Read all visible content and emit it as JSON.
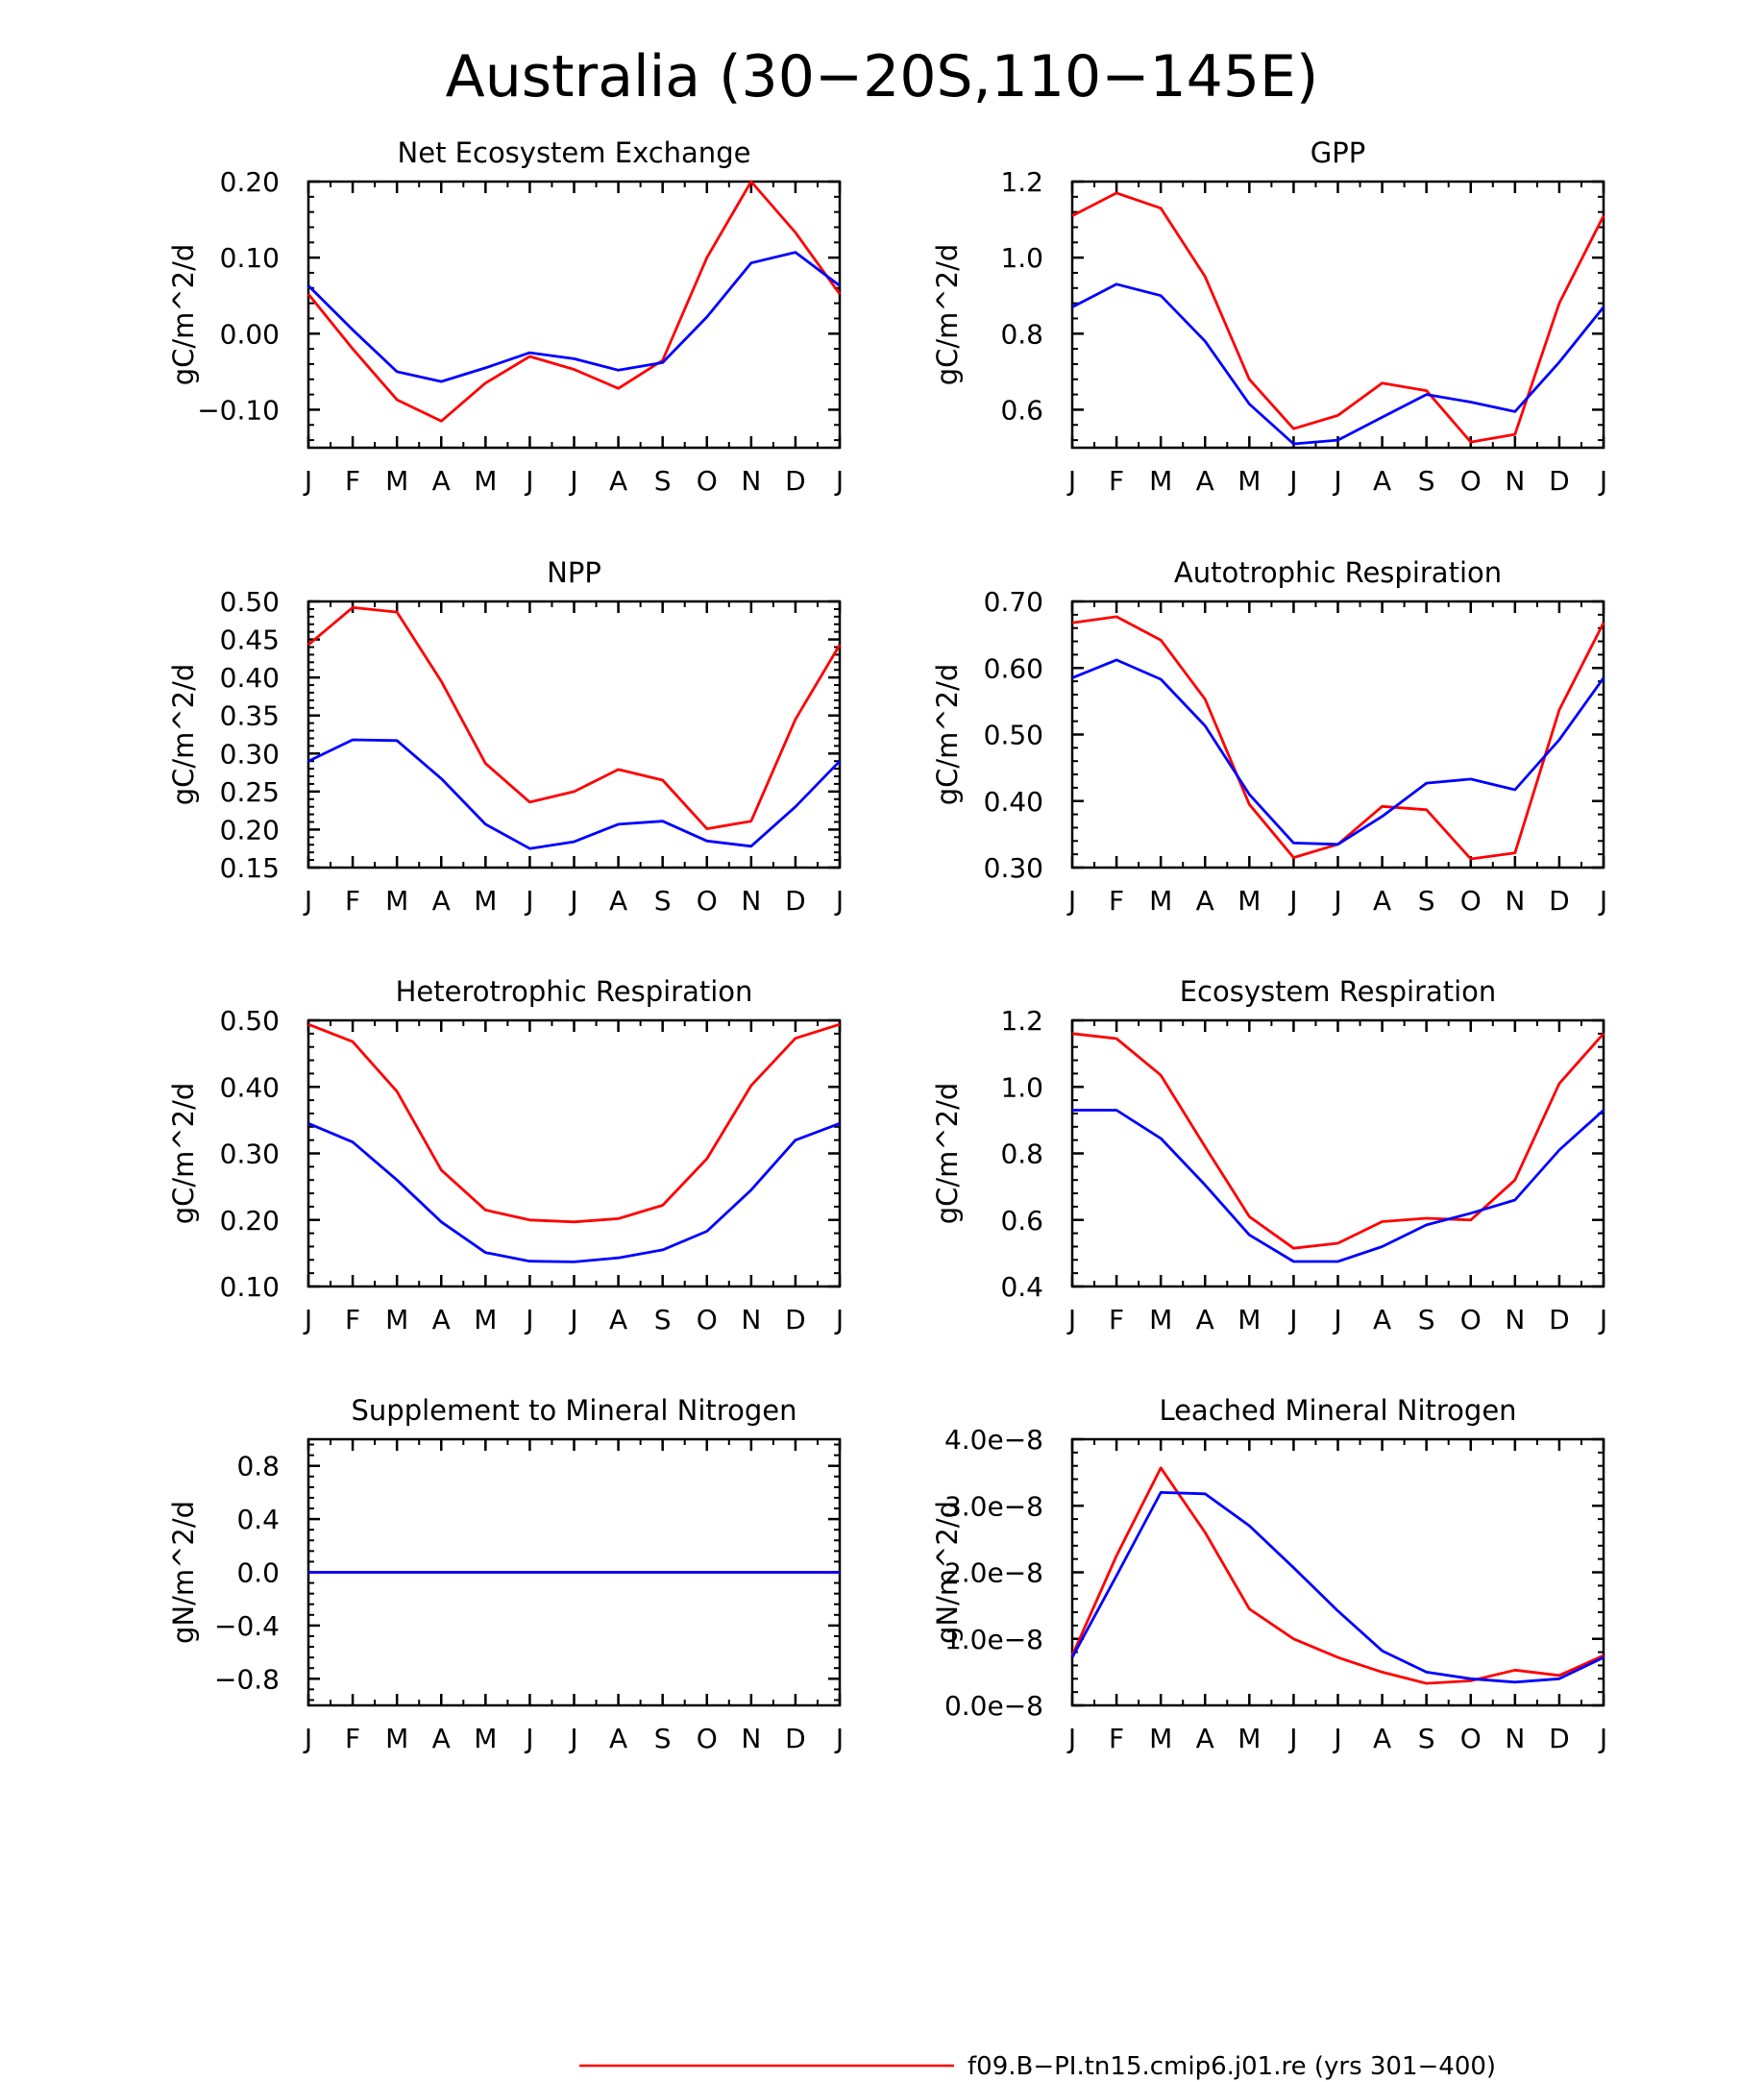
{
  "figure": {
    "title": "Australia (30−20S,110−145E)",
    "colors": {
      "series_1": "#ff0000",
      "series_2": "#0000ff",
      "axes": "#000000",
      "background": "#ffffff"
    }
  },
  "legend": {
    "entries": [
      {
        "label": "f09.B−PI.tn15.cmip6.j01.re (yrs 301−400)",
        "color": "#ff0000"
      }
    ]
  },
  "chart_data": [
    {
      "type": "line",
      "title": "Net Ecosystem Exchange",
      "ylabel": "gC/m^2/d",
      "xlabel": "",
      "categories": [
        "J",
        "F",
        "M",
        "A",
        "M",
        "J",
        "J",
        "A",
        "S",
        "O",
        "N",
        "D",
        "J"
      ],
      "ylim": [
        -0.15,
        0.2
      ],
      "yticks": [
        -0.1,
        0.0,
        0.1,
        0.2
      ],
      "ytick_labels": [
        "−0.10",
        "0.00",
        "0.10",
        "0.20"
      ],
      "series": [
        {
          "color": "#ff0000",
          "values": [
            0.052,
            -0.02,
            -0.087,
            -0.115,
            -0.065,
            -0.03,
            -0.047,
            -0.072,
            -0.035,
            0.1,
            0.2,
            0.133,
            0.052
          ]
        },
        {
          "color": "#0000ff",
          "values": [
            0.063,
            0.005,
            -0.05,
            -0.063,
            -0.045,
            -0.025,
            -0.033,
            -0.048,
            -0.038,
            0.022,
            0.093,
            0.107,
            0.063
          ]
        }
      ]
    },
    {
      "type": "line",
      "title": "GPP",
      "ylabel": "gC/m^2/d",
      "xlabel": "",
      "categories": [
        "J",
        "F",
        "M",
        "A",
        "M",
        "J",
        "J",
        "A",
        "S",
        "O",
        "N",
        "D",
        "J"
      ],
      "ylim": [
        0.5,
        1.2
      ],
      "yticks": [
        0.6,
        0.8,
        1.0,
        1.2
      ],
      "ytick_labels": [
        "0.6",
        "0.8",
        "1.0",
        "1.2"
      ],
      "series": [
        {
          "color": "#ff0000",
          "values": [
            1.11,
            1.17,
            1.13,
            0.95,
            0.68,
            0.55,
            0.585,
            0.67,
            0.65,
            0.515,
            0.535,
            0.88,
            1.11
          ]
        },
        {
          "color": "#0000ff",
          "values": [
            0.87,
            0.93,
            0.9,
            0.78,
            0.615,
            0.51,
            0.52,
            0.58,
            0.64,
            0.62,
            0.595,
            0.725,
            0.87
          ]
        }
      ]
    },
    {
      "type": "line",
      "title": "NPP",
      "ylabel": "gC/m^2/d",
      "xlabel": "",
      "categories": [
        "J",
        "F",
        "M",
        "A",
        "M",
        "J",
        "J",
        "A",
        "S",
        "O",
        "N",
        "D",
        "J"
      ],
      "ylim": [
        0.15,
        0.5
      ],
      "yticks": [
        0.15,
        0.2,
        0.25,
        0.3,
        0.35,
        0.4,
        0.45,
        0.5
      ],
      "ytick_labels": [
        "0.15",
        "0.20",
        "0.25",
        "0.30",
        "0.35",
        "0.40",
        "0.45",
        "0.50"
      ],
      "series": [
        {
          "color": "#ff0000",
          "values": [
            0.443,
            0.492,
            0.486,
            0.395,
            0.287,
            0.236,
            0.25,
            0.279,
            0.265,
            0.201,
            0.211,
            0.345,
            0.443
          ]
        },
        {
          "color": "#0000ff",
          "values": [
            0.29,
            0.318,
            0.317,
            0.267,
            0.207,
            0.175,
            0.184,
            0.207,
            0.211,
            0.185,
            0.178,
            0.23,
            0.29
          ]
        }
      ]
    },
    {
      "type": "line",
      "title": "Autotrophic Respiration",
      "ylabel": "gC/m^2/d",
      "xlabel": "",
      "categories": [
        "J",
        "F",
        "M",
        "A",
        "M",
        "J",
        "J",
        "A",
        "S",
        "O",
        "N",
        "D",
        "J"
      ],
      "ylim": [
        0.3,
        0.7
      ],
      "yticks": [
        0.3,
        0.4,
        0.5,
        0.6,
        0.7
      ],
      "ytick_labels": [
        "0.30",
        "0.40",
        "0.50",
        "0.60",
        "0.70"
      ],
      "series": [
        {
          "color": "#ff0000",
          "values": [
            0.668,
            0.677,
            0.642,
            0.553,
            0.395,
            0.315,
            0.335,
            0.392,
            0.387,
            0.313,
            0.322,
            0.537,
            0.668
          ]
        },
        {
          "color": "#0000ff",
          "values": [
            0.585,
            0.612,
            0.583,
            0.513,
            0.41,
            0.337,
            0.335,
            0.377,
            0.427,
            0.433,
            0.417,
            0.492,
            0.585
          ]
        }
      ]
    },
    {
      "type": "line",
      "title": "Heterotrophic Respiration",
      "ylabel": "gC/m^2/d",
      "xlabel": "",
      "categories": [
        "J",
        "F",
        "M",
        "A",
        "M",
        "J",
        "J",
        "A",
        "S",
        "O",
        "N",
        "D",
        "J"
      ],
      "ylim": [
        0.1,
        0.5
      ],
      "yticks": [
        0.1,
        0.2,
        0.3,
        0.4,
        0.5
      ],
      "ytick_labels": [
        "0.10",
        "0.20",
        "0.30",
        "0.40",
        "0.50"
      ],
      "series": [
        {
          "color": "#ff0000",
          "values": [
            0.494,
            0.468,
            0.393,
            0.275,
            0.215,
            0.2,
            0.197,
            0.202,
            0.222,
            0.292,
            0.402,
            0.473,
            0.494
          ]
        },
        {
          "color": "#0000ff",
          "values": [
            0.345,
            0.317,
            0.26,
            0.197,
            0.151,
            0.138,
            0.137,
            0.143,
            0.155,
            0.183,
            0.245,
            0.32,
            0.345
          ]
        }
      ]
    },
    {
      "type": "line",
      "title": "Ecosystem Respiration",
      "ylabel": "gC/m^2/d",
      "xlabel": "",
      "categories": [
        "J",
        "F",
        "M",
        "A",
        "M",
        "J",
        "J",
        "A",
        "S",
        "O",
        "N",
        "D",
        "J"
      ],
      "ylim": [
        0.4,
        1.2
      ],
      "yticks": [
        0.4,
        0.6,
        0.8,
        1.0,
        1.2
      ],
      "ytick_labels": [
        "0.4",
        "0.6",
        "0.8",
        "1.0",
        "1.2"
      ],
      "series": [
        {
          "color": "#ff0000",
          "values": [
            1.16,
            1.145,
            1.035,
            0.82,
            0.61,
            0.515,
            0.53,
            0.595,
            0.605,
            0.6,
            0.72,
            1.01,
            1.16
          ]
        },
        {
          "color": "#0000ff",
          "values": [
            0.93,
            0.93,
            0.845,
            0.705,
            0.555,
            0.475,
            0.475,
            0.52,
            0.585,
            0.62,
            0.66,
            0.81,
            0.93
          ]
        }
      ]
    },
    {
      "type": "line",
      "title": "Supplement to Mineral Nitrogen",
      "ylabel": "gN/m^2/d",
      "xlabel": "",
      "categories": [
        "J",
        "F",
        "M",
        "A",
        "M",
        "J",
        "J",
        "A",
        "S",
        "O",
        "N",
        "D",
        "J"
      ],
      "ylim": [
        -1.0,
        1.0
      ],
      "yticks": [
        -0.8,
        -0.4,
        0.0,
        0.4,
        0.8
      ],
      "ytick_labels": [
        "−0.8",
        "−0.4",
        "0.0",
        "0.4",
        "0.8"
      ],
      "series": [
        {
          "color": "#ff0000",
          "values": [
            0,
            0,
            0,
            0,
            0,
            0,
            0,
            0,
            0,
            0,
            0,
            0,
            0
          ]
        },
        {
          "color": "#0000ff",
          "values": [
            0,
            0,
            0,
            0,
            0,
            0,
            0,
            0,
            0,
            0,
            0,
            0,
            0
          ]
        }
      ]
    },
    {
      "type": "line",
      "title": "Leached Mineral Nitrogen",
      "ylabel": "gN/m^2/d",
      "xlabel": "",
      "categories": [
        "J",
        "F",
        "M",
        "A",
        "M",
        "J",
        "J",
        "A",
        "S",
        "O",
        "N",
        "D",
        "J"
      ],
      "ylim": [
        0.0,
        4e-08
      ],
      "yticks": [
        0.0,
        1e-08,
        2e-08,
        3e-08,
        4e-08
      ],
      "ytick_labels": [
        "0.0e−8",
        "1.0e−8",
        "2.0e−8",
        "3.0e−8",
        "4.0e−8"
      ],
      "series": [
        {
          "color": "#ff0000",
          "values": [
            7.5e-09,
            2.25e-08,
            3.57e-08,
            2.6e-08,
            1.45e-08,
            1e-08,
            7.2e-09,
            5e-09,
            3.3e-09,
            3.7e-09,
            5.3e-09,
            4.5e-09,
            7.5e-09
          ]
        },
        {
          "color": "#0000ff",
          "values": [
            7.2e-09,
            1.95e-08,
            3.2e-08,
            3.18e-08,
            2.7e-08,
            2.07e-08,
            1.42e-08,
            8.2e-09,
            5e-09,
            4e-09,
            3.5e-09,
            4e-09,
            7.2e-09
          ]
        }
      ]
    }
  ]
}
